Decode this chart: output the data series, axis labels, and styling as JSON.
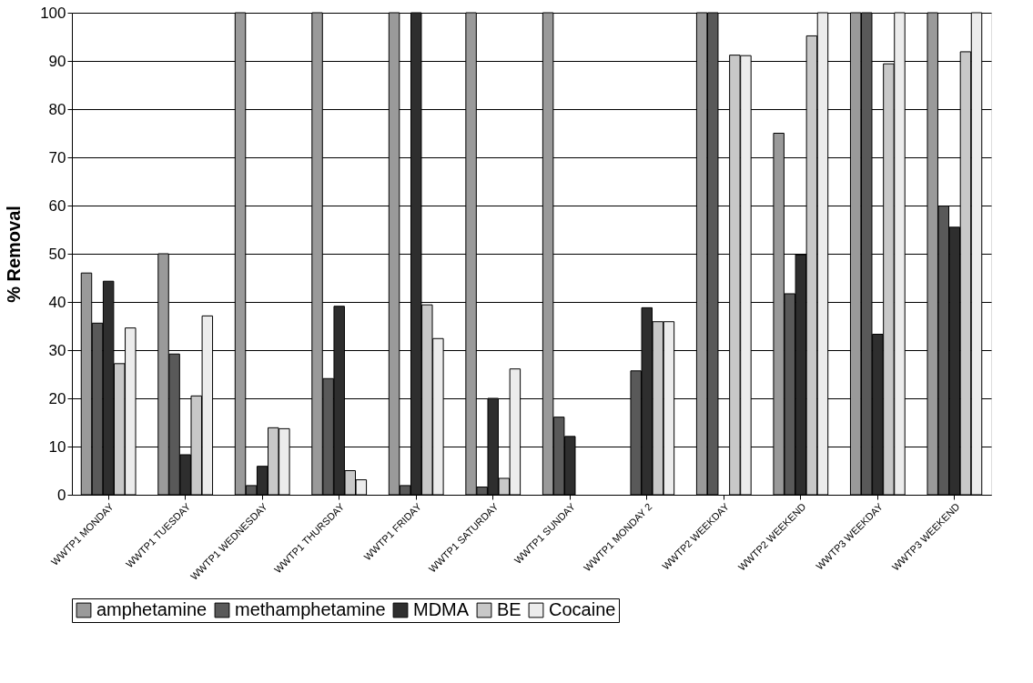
{
  "chart_data": {
    "type": "bar",
    "ylabel": "% Removal",
    "categories": [
      "WWTP1 MONDAY",
      "WWTP1 TUESDAY",
      "WWTP1 WEDNESDAY",
      "WWTP1 THURSDAY",
      "WWTP1 FRIDAY",
      "WWTP1 SATURDAY",
      "WWTP1 SUNDAY",
      "WWTP1 MONDAY 2",
      "WWTP2 WEEKDAY",
      "WWTP2 WEEKEND",
      "WWTP3 WEEKDAY",
      "WWTP3 WEEKEND"
    ],
    "series": [
      {
        "name": "amphetamine",
        "color": "#9a9a9a",
        "values": [
          46,
          50,
          100,
          100,
          100,
          100,
          100,
          null,
          100,
          75,
          100,
          100
        ]
      },
      {
        "name": "methamphetamine",
        "color": "#595959",
        "values": [
          35.6,
          29.2,
          1.9,
          24.1,
          1.9,
          1.6,
          16.1,
          25.7,
          100,
          41.7,
          100,
          59.9
        ]
      },
      {
        "name": "MDMA",
        "color": "#2e2e2e",
        "values": [
          44.3,
          8.3,
          5.9,
          39.1,
          100,
          20,
          12.1,
          38.8,
          null,
          49.8,
          33.3,
          55.5
        ]
      },
      {
        "name": "BE",
        "color": "#c8c8c8",
        "values": [
          27.2,
          20.5,
          13.9,
          5,
          39.4,
          3.4,
          null,
          35.9,
          91.2,
          95.2,
          89.4,
          91.9
        ]
      },
      {
        "name": "Cocaine",
        "color": "#ececec",
        "values": [
          34.6,
          37.1,
          13.7,
          3.1,
          32.4,
          26.1,
          null,
          35.9,
          91.1,
          100,
          100,
          100
        ]
      }
    ],
    "ylim": [
      0,
      100
    ],
    "yticks": [
      0,
      10,
      20,
      30,
      40,
      50,
      60,
      70,
      80,
      90,
      100
    ],
    "grid": "y",
    "legend": "bottom"
  }
}
